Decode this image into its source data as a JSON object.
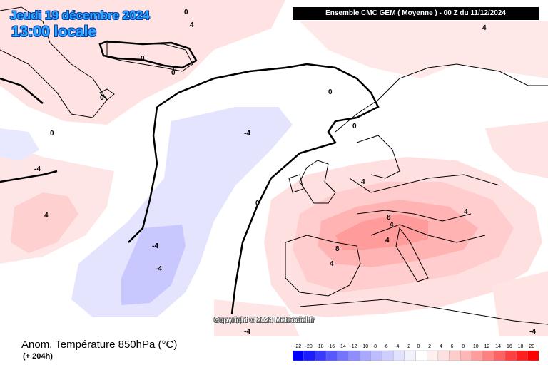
{
  "header": {
    "date": "Jeudi 19 décembre 2024",
    "time": "13:00 locale",
    "model": "Ensemble CMC GEM  ( Moyenne )  -  00 Z du 11/12/2024"
  },
  "copyright": "Copyright © 2024 Meteociel.fr",
  "footer": {
    "variable": "Anom. Température 850hPa (°C)",
    "lead": "(+ 204h)"
  },
  "legend": {
    "ticks": [
      "-22",
      "-20",
      "-18",
      "-16",
      "-14",
      "-12",
      "-10",
      "-8",
      "-6",
      "-4",
      "-2",
      "0",
      "2",
      "4",
      "6",
      "8",
      "10",
      "12",
      "14",
      "16",
      "18",
      "20"
    ],
    "colors": [
      "#0000ff",
      "#1c1cff",
      "#3a3aff",
      "#5858ff",
      "#7474ff",
      "#8e8eff",
      "#a8a8ff",
      "#bcbcff",
      "#cfcfff",
      "#e2e2ff",
      "#f2f2ff",
      "#ffffff",
      "#fff0f0",
      "#ffe0e0",
      "#ffcccc",
      "#ffb6b6",
      "#ff9c9c",
      "#ff8080",
      "#ff6262",
      "#ff4040",
      "#ff1f1f",
      "#ff0000"
    ]
  },
  "contour_labels": [
    "0",
    "0",
    "0",
    "0",
    "0",
    "0",
    "-4",
    "-4",
    "-4",
    "-4",
    "-4",
    "4",
    "4",
    "4",
    "4",
    "4",
    "4",
    "4",
    "8",
    "8",
    "4",
    "-4",
    "0",
    "0",
    "0"
  ]
}
